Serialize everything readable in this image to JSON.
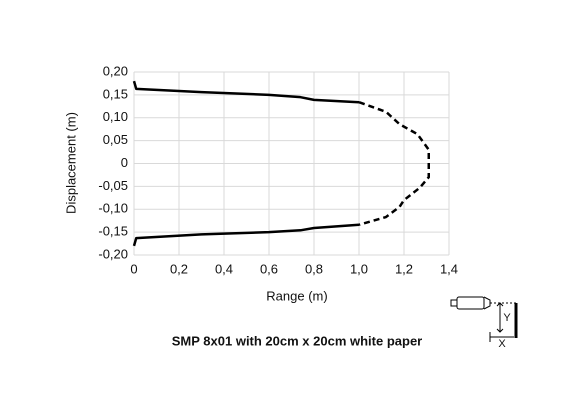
{
  "chart_data": {
    "type": "line",
    "title": "SMP 8x01 with 20cm x 20cm white paper",
    "x_label": "Range (m)",
    "y_label": "Displacement (m)",
    "xlim": [
      0,
      1.4
    ],
    "ylim": [
      -0.2,
      0.2
    ],
    "xticks": [
      0,
      {
        "value": 0.2,
        "label": "0,2"
      },
      {
        "value": 0.4,
        "label": "0,4"
      },
      {
        "value": 0.6,
        "label": "0,6"
      },
      {
        "value": 0.8,
        "label": "0,8"
      },
      {
        "value": 1.0,
        "label": "1,0"
      },
      {
        "value": 1.2,
        "label": "1,2"
      },
      {
        "value": 1.4,
        "label": "1,4"
      }
    ],
    "yticks": [
      {
        "value": 0.2,
        "label": "0,20"
      },
      {
        "value": 0.15,
        "label": "0,15"
      },
      {
        "value": 0.1,
        "label": "0,10"
      },
      {
        "value": 0.05,
        "label": "0,05"
      },
      0,
      {
        "value": -0.05,
        "label": "-0,05"
      },
      {
        "value": -0.1,
        "label": "-0,10"
      },
      {
        "value": -0.15,
        "label": "-0,15"
      },
      {
        "value": -0.2,
        "label": "-0,20"
      }
    ],
    "grid": true,
    "series": [
      {
        "color": "#000000",
        "dashed": false,
        "x": [
          0.0,
          0.01,
          0.3,
          0.6,
          0.74,
          0.8,
          1.0,
          null,
          1.0,
          0.8,
          0.74,
          0.6,
          0.3,
          0.01,
          0.0
        ],
        "values": [
          0.18,
          0.163,
          0.156,
          0.15,
          0.145,
          0.139,
          0.134,
          null,
          -0.134,
          -0.141,
          -0.146,
          -0.15,
          -0.155,
          -0.163,
          -0.18
        ]
      },
      {
        "color": "#000000",
        "dashed": true,
        "x": [
          1.0,
          1.12,
          1.18,
          1.26,
          1.31,
          1.31,
          1.27,
          1.2,
          1.18,
          1.12,
          1.0
        ],
        "values": [
          0.134,
          0.113,
          0.086,
          0.064,
          0.03,
          -0.03,
          -0.053,
          -0.08,
          -0.095,
          -0.117,
          -0.134
        ]
      }
    ],
    "diagram_labels": {
      "y": "Y",
      "x": "X"
    }
  }
}
